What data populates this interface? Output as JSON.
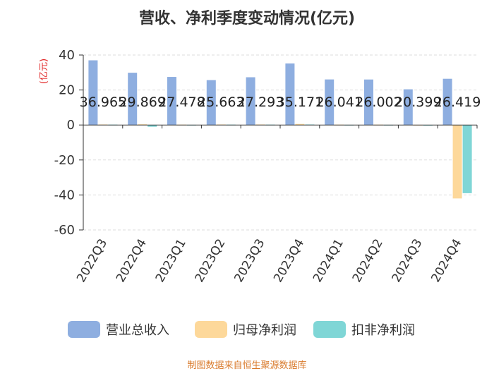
{
  "chart_data": {
    "type": "bar",
    "title": "营收、净利季度变动情况(亿元)",
    "ylabel": "(亿元)",
    "xlabel": "",
    "ylim": [
      -60,
      40
    ],
    "yticks": [
      40,
      20,
      0,
      -20,
      -40,
      -60
    ],
    "grid": true,
    "legend_position": "bottom",
    "categories": [
      "2022Q3",
      "2022Q4",
      "2023Q1",
      "2023Q2",
      "2023Q3",
      "2023Q4",
      "2024Q1",
      "2024Q2",
      "2024Q3",
      "2024Q4"
    ],
    "series": [
      {
        "name": "营业总收入",
        "color": "#8eaee0",
        "values": [
          36.965,
          29.869,
          27.478,
          25.663,
          27.293,
          35.171,
          26.041,
          26.002,
          20.399,
          26.419
        ],
        "labels": [
          "36.965",
          "29.869",
          "27.478",
          "25.663",
          "27.293",
          "35.171",
          "26.041",
          "26.002",
          "20.399",
          "26.419"
        ]
      },
      {
        "name": "归母净利润",
        "color": "#fdd89a",
        "values": [
          0.3,
          0.4,
          0.2,
          0.3,
          0.3,
          0.6,
          0.2,
          0.2,
          0.1,
          -42.0
        ]
      },
      {
        "name": "扣非净利润",
        "color": "#7fd6d6",
        "values": [
          0.2,
          -1.0,
          0.1,
          0.2,
          0.2,
          0.3,
          0.1,
          0.1,
          -0.3,
          -39.0
        ]
      }
    ]
  },
  "footer": {
    "text": "制图数据来自恒生聚源数据库",
    "color": "#d97a2b"
  }
}
